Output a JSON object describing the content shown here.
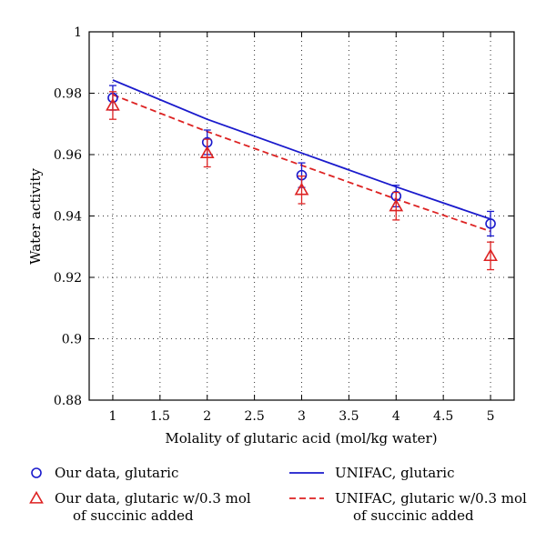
{
  "chart_data": {
    "type": "line",
    "xlabel": "Molality of glutaric acid (mol/kg water)",
    "ylabel": "Water activity",
    "xlim": [
      0.75,
      5.25
    ],
    "ylim": [
      0.88,
      1.0
    ],
    "xticks": [
      1,
      1.5,
      2,
      2.5,
      3,
      3.5,
      4,
      4.5,
      5
    ],
    "xtick_labels": [
      "1",
      "1.5",
      "2",
      "2.5",
      "3",
      "3.5",
      "4",
      "4.5",
      "5"
    ],
    "yticks": [
      0.88,
      0.9,
      0.92,
      0.94,
      0.96,
      0.98,
      1.0
    ],
    "ytick_labels": [
      "0.88",
      "0.9",
      "0.92",
      "0.94",
      "0.96",
      "0.98",
      "1"
    ],
    "grid": true,
    "legend_position": "bottom",
    "series": [
      {
        "key": "our_glutaric",
        "kind": "scatter",
        "marker": "circle",
        "color": "#1a1acc",
        "legend": [
          "Our data, glutaric"
        ],
        "x": [
          1,
          2,
          3,
          4,
          5
        ],
        "y": [
          0.9785,
          0.964,
          0.9533,
          0.9465,
          0.9375
        ],
        "err": [
          0.004,
          0.004,
          0.004,
          0.0035,
          0.004
        ]
      },
      {
        "key": "our_glutaric_succinic",
        "kind": "scatter",
        "marker": "triangle",
        "color": "#dd2222",
        "legend": [
          "Our data, glutaric w/0.3 mol",
          "of succinic added"
        ],
        "x": [
          1,
          2,
          3,
          4,
          5
        ],
        "y": [
          0.976,
          0.9605,
          0.9485,
          0.9432,
          0.927
        ],
        "err": [
          0.0045,
          0.0045,
          0.0045,
          0.0045,
          0.0045
        ]
      },
      {
        "key": "unifac_glutaric",
        "kind": "line",
        "dash": "solid",
        "color": "#1a1acc",
        "legend": [
          "UNIFAC, glutaric"
        ],
        "x": [
          1,
          2,
          3,
          4,
          5
        ],
        "y": [
          0.9843,
          0.9715,
          0.9605,
          0.9495,
          0.939
        ]
      },
      {
        "key": "unifac_glutaric_succinic",
        "kind": "line",
        "dash": "dashed",
        "color": "#dd2222",
        "legend": [
          "UNIFAC, glutaric w/0.3 mol",
          "of succinic added"
        ],
        "x": [
          1,
          2,
          3,
          4,
          5
        ],
        "y": [
          0.9795,
          0.9675,
          0.9565,
          0.9455,
          0.935
        ]
      }
    ]
  }
}
